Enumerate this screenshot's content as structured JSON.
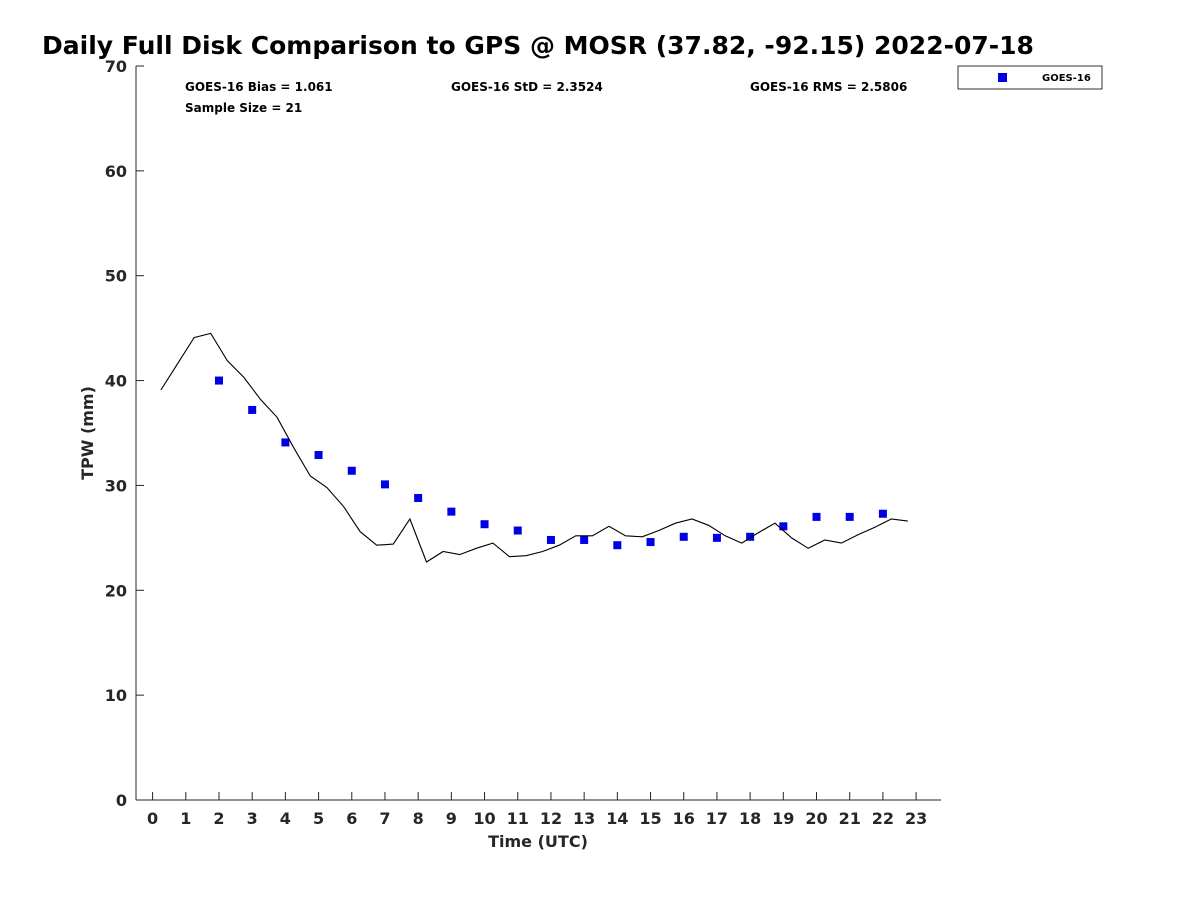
{
  "chart_data": {
    "type": "scatter",
    "title": "Daily Full Disk Comparison to GPS @ MOSR (37.82, -92.15) 2022-07-18",
    "xlabel": "Time (UTC)",
    "ylabel": "TPW (mm)",
    "xlim": [
      -0.5,
      23.75
    ],
    "ylim": [
      0,
      70
    ],
    "x_ticks": [
      "0",
      "1",
      "2",
      "3",
      "4",
      "5",
      "6",
      "7",
      "8",
      "9",
      "10",
      "11",
      "12",
      "13",
      "14",
      "15",
      "16",
      "17",
      "18",
      "19",
      "20",
      "21",
      "22",
      "23"
    ],
    "y_ticks": [
      "0",
      "10",
      "20",
      "30",
      "40",
      "50",
      "60",
      "70"
    ],
    "grid": false,
    "legend_position": "outside top-right",
    "stats": {
      "bias": "GOES-16 Bias = 1.061",
      "std": "GOES-16 StD = 2.3524",
      "rms": "GOES-16 RMS = 2.5806",
      "sample_size": "Sample Size = 21"
    },
    "series": [
      {
        "name": "GOES-16",
        "kind": "scatter",
        "color": "#0000e6",
        "x": [
          2,
          3,
          4,
          5,
          6,
          7,
          8,
          9,
          10,
          11,
          12,
          13,
          14,
          15,
          16,
          17,
          18,
          19,
          20,
          21,
          22
        ],
        "y": [
          40.0,
          37.2,
          34.1,
          32.9,
          31.4,
          30.1,
          28.8,
          27.5,
          26.3,
          25.7,
          24.8,
          24.8,
          24.3,
          24.6,
          25.1,
          25.0,
          25.1,
          26.1,
          27.0,
          27.0,
          27.3
        ]
      },
      {
        "kind": "line",
        "color": "#000000",
        "x": [
          0.25,
          0.75,
          1.25,
          1.75,
          2.25,
          2.75,
          3.25,
          3.75,
          4.25,
          4.75,
          5.25,
          5.75,
          6.25,
          6.75,
          7.25,
          7.75,
          8.25,
          8.75,
          9.25,
          9.75,
          10.25,
          10.75,
          11.25,
          11.75,
          12.25,
          12.75,
          13.25,
          13.75,
          14.25,
          14.75,
          15.25,
          15.75,
          16.25,
          16.75,
          17.25,
          17.75,
          18.25,
          18.75,
          19.25,
          19.75,
          20.25,
          20.75,
          21.25,
          21.75,
          22.25,
          22.75
        ],
        "y": [
          39.1,
          41.6,
          44.1,
          44.5,
          41.9,
          40.3,
          38.2,
          36.5,
          33.6,
          30.9,
          29.8,
          28.0,
          25.6,
          24.3,
          24.4,
          26.8,
          22.7,
          23.7,
          23.4,
          24.0,
          24.5,
          23.2,
          23.3,
          23.7,
          24.3,
          25.2,
          25.2,
          26.1,
          25.2,
          25.1,
          25.7,
          26.4,
          26.8,
          26.2,
          25.2,
          24.5,
          25.5,
          26.4,
          25.0,
          24.0,
          24.8,
          24.5,
          25.3,
          26.0,
          26.8,
          26.6
        ]
      }
    ]
  }
}
